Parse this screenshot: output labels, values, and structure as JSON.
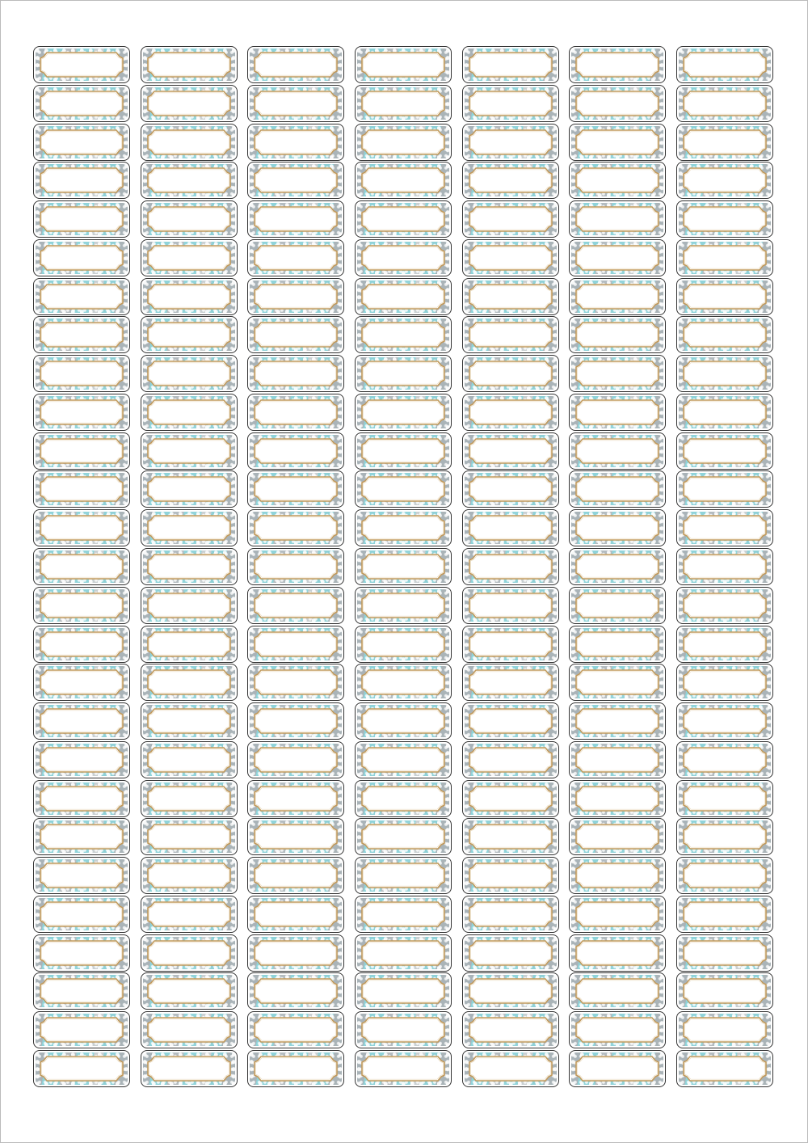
{
  "sheet": {
    "columns": 7,
    "rows": 27,
    "label_text": "",
    "colors": {
      "pattern_teal": "#8fd3d9",
      "pattern_gray": "#aab4b8",
      "frame_gold": "#c29a5c",
      "outline": "#333333"
    }
  }
}
